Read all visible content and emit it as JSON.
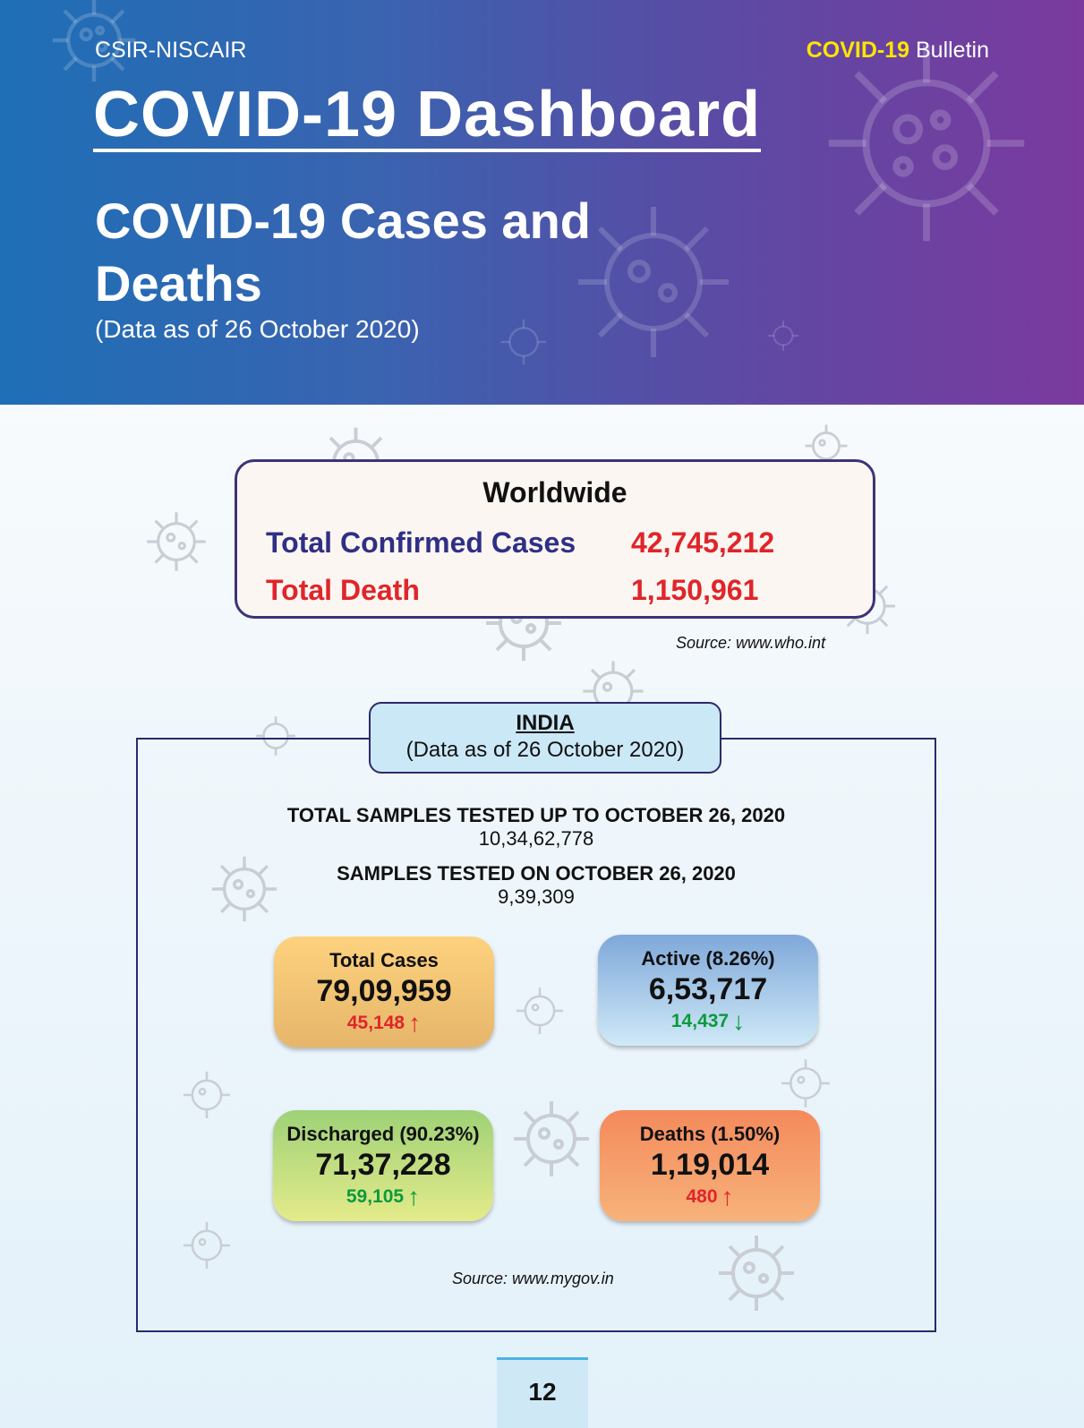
{
  "header": {
    "publisher": "CSIR-NISCAIR",
    "bulletin_highlight": "COVID-19",
    "bulletin_rest": " Bulletin",
    "title": "COVID-19 Dashboard",
    "subtitle": "COVID-19 Cases and Deaths",
    "data_as_of": "(Data as of 26 October 2020)"
  },
  "worldwide": {
    "title": "Worldwide",
    "confirmed_label": "Total Confirmed Cases",
    "confirmed_value": "42,745,212",
    "death_label": "Total Death",
    "death_value": "1,150,961",
    "source": "Source: www.who.int"
  },
  "india": {
    "title": "INDIA",
    "data_as_of": "(Data as of 26 October 2020)",
    "total_samples_label": "TOTAL SAMPLES TESTED UP TO OCTOBER 26, 2020",
    "total_samples_value": "10,34,62,778",
    "day_samples_label": "SAMPLES TESTED ON OCTOBER 26, 2020",
    "day_samples_value": "9,39,309",
    "cards": {
      "total": {
        "label": "Total Cases",
        "value": "79,09,959",
        "change": "45,148",
        "arrow": "↑"
      },
      "active": {
        "label": "Active (8.26%)",
        "value": "6,53,717",
        "change": "14,437",
        "arrow": "↓"
      },
      "discharged": {
        "label": "Discharged (90.23%)",
        "value": "71,37,228",
        "change": "59,105",
        "arrow": "↑"
      },
      "deaths": {
        "label": "Deaths (1.50%)",
        "value": "1,19,014",
        "change": "480",
        "arrow": "↑"
      }
    },
    "source": "Source: www.mygov.in"
  },
  "page_number": "12",
  "colors": {
    "navy": "#2f2f86",
    "red": "#e0252a",
    "green": "#0b9a3c",
    "yellow": "#ffe400"
  }
}
